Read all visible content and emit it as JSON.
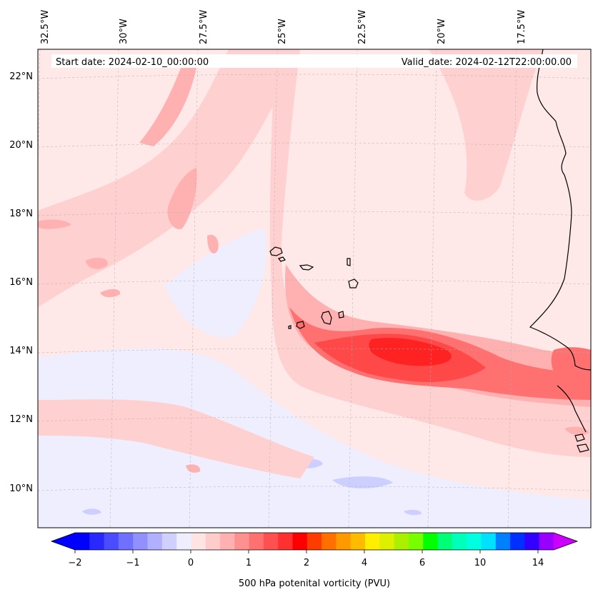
{
  "map": {
    "start_date_text": "Start date: 2024-02-10_00:00:00",
    "valid_date_text": "Valid_date: 2024-02-12T22:00:00.00",
    "lon_labels": [
      "32.5°W",
      "30°W",
      "27.5°W",
      "25°W",
      "22.5°W",
      "20°W",
      "17.5°W"
    ],
    "lat_labels": [
      "22°N",
      "20°N",
      "18°N",
      "16°N",
      "14°N",
      "12°N",
      "10°N"
    ],
    "field_colors": {
      "background": "#ffe8e8",
      "band_light": "#ffd0d0",
      "band_mid": "#ffb0b0",
      "core_1": "#ff7070",
      "core_2": "#ff4848",
      "core_3": "#ff2222",
      "negative": "#eeeeff",
      "negative_strong": "#cccfff",
      "coastline": "#000000"
    }
  },
  "colorbar": {
    "label": "500 hPa potenital vorticity (PVU)",
    "tick_labels": [
      "−2",
      "−1",
      "0",
      "1",
      "2",
      "4",
      "6",
      "10",
      "14"
    ],
    "colors": [
      "#0000ff",
      "#2828ff",
      "#4c4cff",
      "#7070ff",
      "#9090ff",
      "#b0b0ff",
      "#d0d0ff",
      "#eeeeff",
      "#ffe4e4",
      "#ffcccc",
      "#ffb0b0",
      "#ff9090",
      "#ff7070",
      "#ff5050",
      "#ff3030",
      "#ff0000",
      "#ff3c00",
      "#ff7000",
      "#ff9900",
      "#ffbb00",
      "#ffee00",
      "#ddf000",
      "#aaf000",
      "#77ff00",
      "#00ff00",
      "#00ff77",
      "#00ffbb",
      "#00ffe0",
      "#00e0ff",
      "#0080ff",
      "#0030ff",
      "#3300ff",
      "#9900ff"
    ],
    "extend_left_color": "#0000ff",
    "extend_right_color": "#cc00ff"
  }
}
